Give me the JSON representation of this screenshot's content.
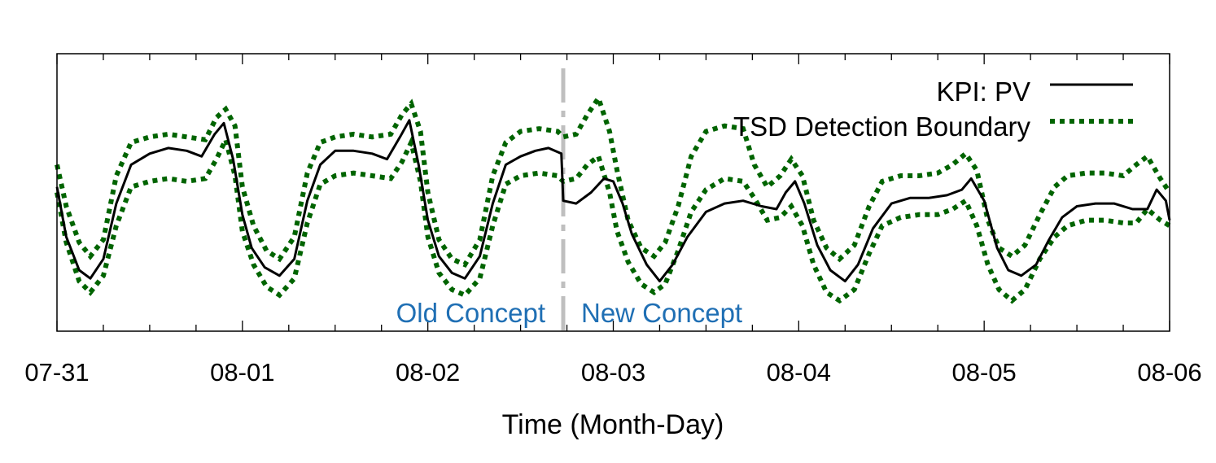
{
  "chart_data": {
    "type": "line",
    "title": "",
    "xlabel": "Time (Month-Day)",
    "ylabel": "",
    "xlim": [
      0,
      6
    ],
    "ylim": [
      0,
      1
    ],
    "x_tick_labels": [
      "07-31",
      "08-01",
      "08-02",
      "08-03",
      "08-04",
      "08-05",
      "08-06"
    ],
    "x_tick_values": [
      0,
      1,
      2,
      3,
      4,
      5,
      6
    ],
    "minor_ticks_per_day": 4,
    "y_axis_tick_labels_shown": false,
    "grid": false,
    "legend_position": "top-right",
    "concept_drift": {
      "x": 2.73,
      "left_label": "Old Concept",
      "right_label": "New Concept",
      "line_color": "#bfbfbf",
      "label_color": "#1f6fb4"
    },
    "series": [
      {
        "name": "KPI: PV",
        "style": "solid",
        "color": "#000000",
        "x": [
          0,
          0.05,
          0.12,
          0.18,
          0.25,
          0.32,
          0.4,
          0.5,
          0.6,
          0.7,
          0.78,
          0.85,
          0.9,
          0.95,
          1.0,
          1.05,
          1.12,
          1.2,
          1.28,
          1.35,
          1.42,
          1.5,
          1.6,
          1.7,
          1.78,
          1.85,
          1.9,
          1.95,
          2.0,
          2.06,
          2.13,
          2.2,
          2.28,
          2.35,
          2.42,
          2.5,
          2.58,
          2.65,
          2.72,
          2.73,
          2.8,
          2.88,
          2.95,
          3.0,
          3.05,
          3.1,
          3.18,
          3.25,
          3.32,
          3.4,
          3.5,
          3.6,
          3.7,
          3.8,
          3.88,
          3.93,
          3.98,
          4.03,
          4.1,
          4.17,
          4.25,
          4.32,
          4.4,
          4.5,
          4.6,
          4.7,
          4.8,
          4.88,
          4.93,
          5.0,
          5.07,
          5.13,
          5.2,
          5.28,
          5.35,
          5.42,
          5.5,
          5.6,
          5.7,
          5.8,
          5.88,
          5.93,
          5.98,
          6.0
        ],
        "y": [
          0.52,
          0.34,
          0.22,
          0.19,
          0.26,
          0.46,
          0.6,
          0.64,
          0.66,
          0.65,
          0.63,
          0.71,
          0.75,
          0.62,
          0.42,
          0.3,
          0.23,
          0.2,
          0.26,
          0.47,
          0.6,
          0.65,
          0.65,
          0.64,
          0.62,
          0.7,
          0.76,
          0.6,
          0.4,
          0.27,
          0.21,
          0.19,
          0.27,
          0.46,
          0.6,
          0.63,
          0.65,
          0.66,
          0.64,
          0.47,
          0.46,
          0.5,
          0.55,
          0.54,
          0.46,
          0.35,
          0.24,
          0.18,
          0.24,
          0.34,
          0.43,
          0.46,
          0.47,
          0.45,
          0.44,
          0.5,
          0.54,
          0.46,
          0.31,
          0.22,
          0.18,
          0.24,
          0.37,
          0.46,
          0.48,
          0.48,
          0.49,
          0.51,
          0.55,
          0.47,
          0.3,
          0.22,
          0.2,
          0.24,
          0.33,
          0.41,
          0.45,
          0.46,
          0.46,
          0.44,
          0.44,
          0.51,
          0.47,
          0.4
        ]
      },
      {
        "name": "TSD Detection Boundary",
        "style": "dotted",
        "color": "#006400",
        "x": [
          0,
          0.05,
          0.12,
          0.18,
          0.25,
          0.32,
          0.4,
          0.5,
          0.6,
          0.7,
          0.8,
          0.86,
          0.91,
          0.96,
          1.0,
          1.06,
          1.13,
          1.2,
          1.28,
          1.35,
          1.42,
          1.5,
          1.6,
          1.7,
          1.8,
          1.86,
          1.91,
          1.96,
          2.0,
          2.06,
          2.13,
          2.2,
          2.28,
          2.35,
          2.42,
          2.5,
          2.6,
          2.7,
          2.73,
          2.8,
          2.86,
          2.92,
          2.98,
          3.02,
          3.08,
          3.15,
          3.22,
          3.28,
          3.35,
          3.42,
          3.5,
          3.6,
          3.7,
          3.76,
          3.83,
          3.9,
          3.96,
          4.02,
          4.08,
          4.15,
          4.22,
          4.3,
          4.38,
          4.45,
          4.55,
          4.65,
          4.75,
          4.83,
          4.9,
          4.96,
          5.02,
          5.08,
          5.15,
          5.22,
          5.3,
          5.38,
          5.45,
          5.55,
          5.65,
          5.75,
          5.82,
          5.88,
          5.95,
          6.0
        ],
        "upper": [
          0.6,
          0.45,
          0.32,
          0.27,
          0.33,
          0.56,
          0.68,
          0.7,
          0.71,
          0.7,
          0.69,
          0.77,
          0.8,
          0.74,
          0.52,
          0.38,
          0.29,
          0.26,
          0.34,
          0.57,
          0.68,
          0.7,
          0.71,
          0.7,
          0.71,
          0.78,
          0.82,
          0.72,
          0.5,
          0.33,
          0.26,
          0.24,
          0.33,
          0.56,
          0.68,
          0.72,
          0.73,
          0.72,
          0.7,
          0.71,
          0.78,
          0.84,
          0.72,
          0.58,
          0.4,
          0.3,
          0.27,
          0.32,
          0.45,
          0.63,
          0.72,
          0.74,
          0.73,
          0.6,
          0.52,
          0.56,
          0.62,
          0.56,
          0.4,
          0.3,
          0.26,
          0.31,
          0.45,
          0.54,
          0.56,
          0.56,
          0.57,
          0.6,
          0.64,
          0.58,
          0.4,
          0.3,
          0.27,
          0.31,
          0.42,
          0.52,
          0.56,
          0.57,
          0.57,
          0.56,
          0.6,
          0.63,
          0.55,
          0.5
        ],
        "lower": [
          0.5,
          0.32,
          0.18,
          0.14,
          0.2,
          0.38,
          0.52,
          0.54,
          0.55,
          0.54,
          0.55,
          0.62,
          0.69,
          0.56,
          0.36,
          0.24,
          0.16,
          0.13,
          0.19,
          0.39,
          0.53,
          0.56,
          0.57,
          0.56,
          0.55,
          0.61,
          0.68,
          0.54,
          0.34,
          0.21,
          0.15,
          0.13,
          0.19,
          0.38,
          0.53,
          0.56,
          0.57,
          0.56,
          0.54,
          0.55,
          0.6,
          0.63,
          0.5,
          0.36,
          0.25,
          0.17,
          0.14,
          0.17,
          0.29,
          0.43,
          0.51,
          0.55,
          0.54,
          0.48,
          0.4,
          0.41,
          0.45,
          0.38,
          0.24,
          0.14,
          0.11,
          0.15,
          0.28,
          0.38,
          0.41,
          0.42,
          0.42,
          0.44,
          0.47,
          0.38,
          0.24,
          0.15,
          0.11,
          0.15,
          0.26,
          0.34,
          0.38,
          0.4,
          0.4,
          0.39,
          0.39,
          0.44,
          0.4,
          0.38
        ]
      }
    ]
  }
}
